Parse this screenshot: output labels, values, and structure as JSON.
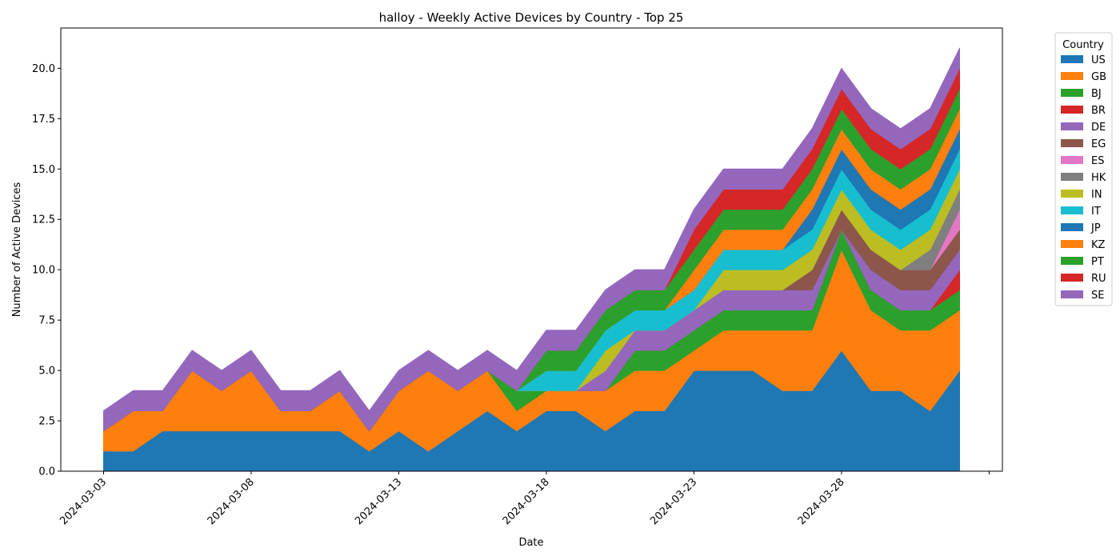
{
  "chart_data": {
    "type": "area",
    "stacked": true,
    "title": "halloy - Weekly Active Devices by Country - Top 25",
    "xlabel": "Date",
    "ylabel": "Number of Active Devices",
    "x": [
      "2024-03-03",
      "2024-03-04",
      "2024-03-05",
      "2024-03-06",
      "2024-03-07",
      "2024-03-08",
      "2024-03-09",
      "2024-03-10",
      "2024-03-11",
      "2024-03-12",
      "2024-03-13",
      "2024-03-14",
      "2024-03-15",
      "2024-03-16",
      "2024-03-17",
      "2024-03-18",
      "2024-03-19",
      "2024-03-20",
      "2024-03-21",
      "2024-03-22",
      "2024-03-23",
      "2024-03-24",
      "2024-03-25",
      "2024-03-26",
      "2024-03-27",
      "2024-03-28",
      "2024-03-29",
      "2024-03-30",
      "2024-03-31",
      "2024-04-01"
    ],
    "x_ticks": [
      "2024-03-03",
      "2024-03-08",
      "2024-03-13",
      "2024-03-18",
      "2024-03-23",
      "2024-03-28"
    ],
    "y_ticks": [
      "0.0",
      "2.5",
      "5.0",
      "7.5",
      "10.0",
      "12.5",
      "15.0",
      "17.5",
      "20.0"
    ],
    "ylim": [
      0,
      22
    ],
    "legend": {
      "title": "Country",
      "placement": "outside-right"
    },
    "series": [
      {
        "name": "US",
        "color": "#1f77b4",
        "values": [
          1,
          1,
          2,
          2,
          2,
          2,
          2,
          2,
          2,
          1,
          2,
          1,
          2,
          3,
          2,
          3,
          3,
          2,
          3,
          3,
          5,
          5,
          5,
          4,
          4,
          6,
          4,
          4,
          3,
          5
        ]
      },
      {
        "name": "GB",
        "color": "#ff7f0e",
        "values": [
          1,
          2,
          1,
          3,
          2,
          3,
          1,
          1,
          2,
          1,
          2,
          4,
          2,
          2,
          1,
          1,
          1,
          2,
          2,
          2,
          1,
          2,
          2,
          3,
          3,
          5,
          4,
          3,
          4,
          3
        ]
      },
      {
        "name": "BJ",
        "color": "#2ca02c",
        "values": [
          0,
          0,
          0,
          0,
          0,
          0,
          0,
          0,
          0,
          0,
          0,
          0,
          0,
          0,
          1,
          0,
          0,
          0,
          1,
          1,
          1,
          1,
          1,
          1,
          1,
          1,
          1,
          1,
          1,
          1
        ]
      },
      {
        "name": "BR",
        "color": "#d62728",
        "values": [
          0,
          0,
          0,
          0,
          0,
          0,
          0,
          0,
          0,
          0,
          0,
          0,
          0,
          0,
          0,
          0,
          0,
          0,
          0,
          0,
          0,
          0,
          0,
          0,
          0,
          0,
          0,
          0,
          0,
          1
        ]
      },
      {
        "name": "DE",
        "color": "#9467bd",
        "values": [
          0,
          0,
          0,
          0,
          0,
          0,
          0,
          0,
          0,
          0,
          0,
          0,
          0,
          0,
          0,
          0,
          0,
          1,
          1,
          1,
          1,
          1,
          1,
          1,
          1,
          0,
          1,
          1,
          1,
          1
        ]
      },
      {
        "name": "EG",
        "color": "#8c564b",
        "values": [
          0,
          0,
          0,
          0,
          0,
          0,
          0,
          0,
          0,
          0,
          0,
          0,
          0,
          0,
          0,
          0,
          0,
          0,
          0,
          0,
          0,
          0,
          0,
          0,
          1,
          1,
          1,
          1,
          1,
          1
        ]
      },
      {
        "name": "ES",
        "color": "#e377c2",
        "values": [
          0,
          0,
          0,
          0,
          0,
          0,
          0,
          0,
          0,
          0,
          0,
          0,
          0,
          0,
          0,
          0,
          0,
          0,
          0,
          0,
          0,
          0,
          0,
          0,
          0,
          0,
          0,
          0,
          0,
          1
        ]
      },
      {
        "name": "HK",
        "color": "#7f7f7f",
        "values": [
          0,
          0,
          0,
          0,
          0,
          0,
          0,
          0,
          0,
          0,
          0,
          0,
          0,
          0,
          0,
          0,
          0,
          0,
          0,
          0,
          0,
          0,
          0,
          0,
          0,
          0,
          0,
          0,
          1,
          1
        ]
      },
      {
        "name": "IN",
        "color": "#bcbd22",
        "values": [
          0,
          0,
          0,
          0,
          0,
          0,
          0,
          0,
          0,
          0,
          0,
          0,
          0,
          0,
          0,
          0,
          0,
          1,
          0,
          0,
          0,
          1,
          1,
          1,
          1,
          1,
          1,
          1,
          1,
          1
        ]
      },
      {
        "name": "IT",
        "color": "#17becf",
        "values": [
          0,
          0,
          0,
          0,
          0,
          0,
          0,
          0,
          0,
          0,
          0,
          0,
          0,
          0,
          0,
          1,
          1,
          1,
          1,
          1,
          1,
          1,
          1,
          1,
          1,
          1,
          1,
          1,
          1,
          1
        ]
      },
      {
        "name": "JP",
        "color": "#1f77b4",
        "values": [
          0,
          0,
          0,
          0,
          0,
          0,
          0,
          0,
          0,
          0,
          0,
          0,
          0,
          0,
          0,
          0,
          0,
          0,
          0,
          0,
          0,
          0,
          0,
          0,
          1,
          1,
          1,
          1,
          1,
          1
        ]
      },
      {
        "name": "KZ",
        "color": "#ff7f0e",
        "values": [
          0,
          0,
          0,
          0,
          0,
          0,
          0,
          0,
          0,
          0,
          0,
          0,
          0,
          0,
          0,
          0,
          0,
          0,
          0,
          0,
          1,
          1,
          1,
          1,
          1,
          1,
          1,
          1,
          1,
          1
        ]
      },
      {
        "name": "PT",
        "color": "#2ca02c",
        "values": [
          0,
          0,
          0,
          0,
          0,
          0,
          0,
          0,
          0,
          0,
          0,
          0,
          0,
          0,
          0,
          1,
          1,
          1,
          1,
          1,
          1,
          1,
          1,
          1,
          1,
          1,
          1,
          1,
          1,
          1
        ]
      },
      {
        "name": "RU",
        "color": "#d62728",
        "values": [
          0,
          0,
          0,
          0,
          0,
          0,
          0,
          0,
          0,
          0,
          0,
          0,
          0,
          0,
          0,
          0,
          0,
          0,
          0,
          0,
          1,
          1,
          1,
          1,
          1,
          1,
          1,
          1,
          1,
          1
        ]
      },
      {
        "name": "SE",
        "color": "#9467bd",
        "values": [
          1,
          1,
          1,
          1,
          1,
          1,
          1,
          1,
          1,
          1,
          1,
          1,
          1,
          1,
          1,
          1,
          1,
          1,
          1,
          1,
          1,
          1,
          1,
          1,
          1,
          1,
          1,
          1,
          1,
          1
        ]
      }
    ]
  }
}
